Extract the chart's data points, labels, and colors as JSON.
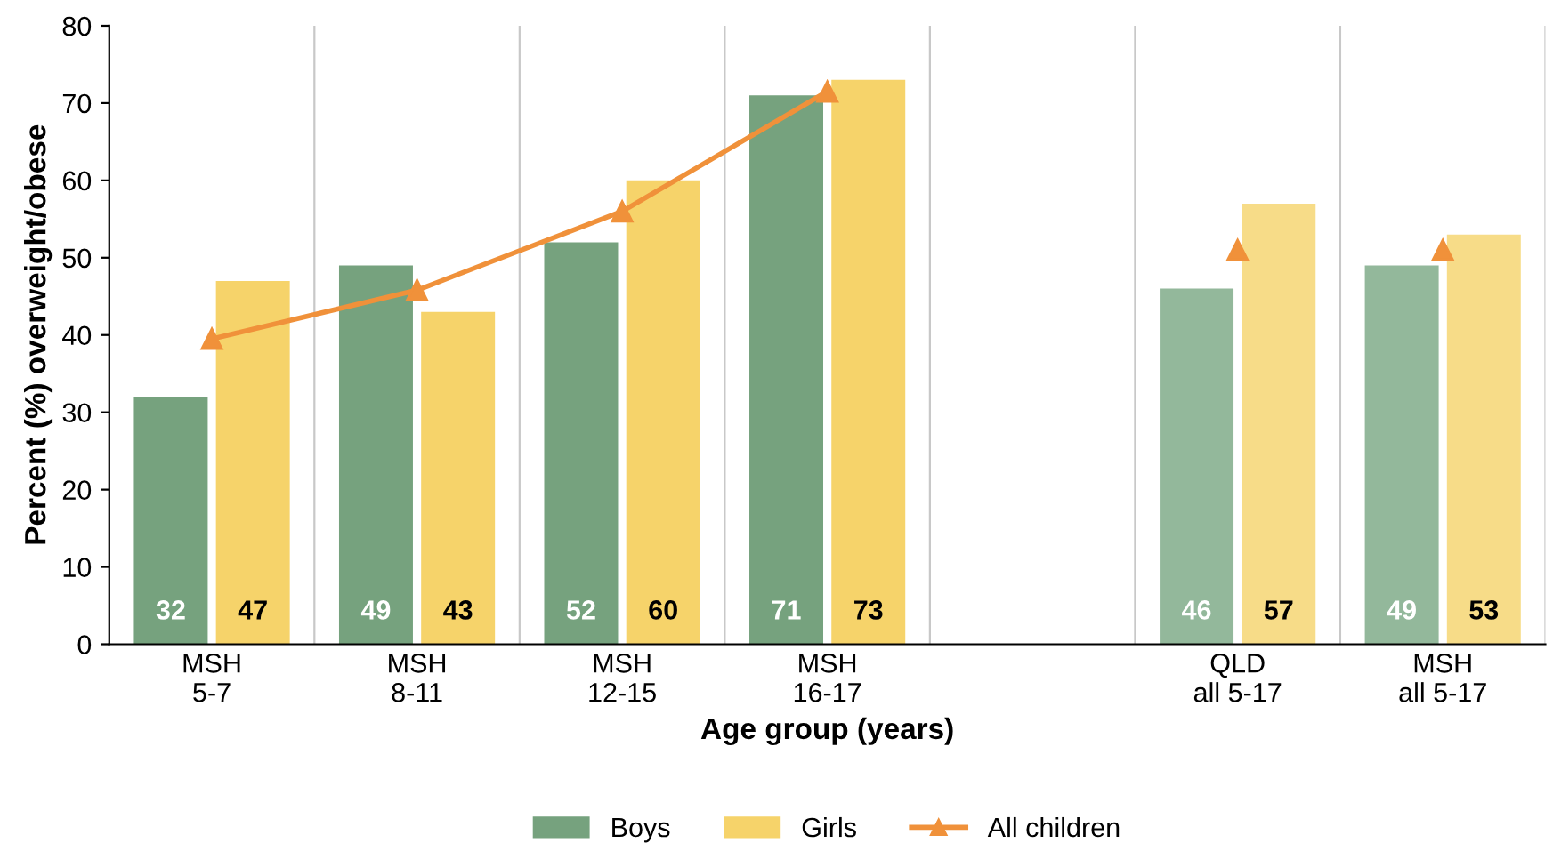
{
  "chart_data": {
    "type": "bar",
    "xlabel": "Age group (years)",
    "ylabel": "Percent (%) overweight/obese",
    "categories": [
      "MSH\n5-7",
      "MSH\n8-11",
      "MSH\n12-15",
      "MSH\n16-17",
      null,
      "QLD\nall 5-17",
      "MSH\nall 5-17"
    ],
    "series": [
      {
        "name": "Boys",
        "color": "#76a27e",
        "colors": [
          "#76a27e",
          "#76a27e",
          "#76a27e",
          "#76a27e",
          "#76a27e",
          "#93b89b",
          "#93b89b"
        ],
        "values": [
          32,
          49,
          52,
          71,
          null,
          46,
          49
        ],
        "value_labels": [
          "32",
          "49",
          "52",
          "71",
          null,
          "46",
          "49"
        ]
      },
      {
        "name": "Girls",
        "color": "#f6d36a",
        "colors": [
          "#f6d36a",
          "#f6d36a",
          "#f6d36a",
          "#f6d36a",
          "#f6d36a",
          "#f7dc88",
          "#f7dc88"
        ],
        "values": [
          47,
          43,
          60,
          73,
          null,
          57,
          53
        ],
        "value_labels": [
          "47",
          "43",
          "60",
          "73",
          null,
          "57",
          "53"
        ]
      },
      {
        "name": "All children",
        "type": "line",
        "color": "#f0913a",
        "marker": "triangle",
        "values": [
          39.5,
          45.8,
          56,
          71.5,
          null,
          null,
          null
        ]
      },
      {
        "type": "scatter",
        "color": "#f0913a",
        "marker": "triangle",
        "values": [
          null,
          null,
          null,
          null,
          null,
          51,
          51
        ]
      }
    ],
    "ylim": [
      0,
      80
    ],
    "yticks": [
      0,
      10,
      20,
      30,
      40,
      50,
      60,
      70,
      80
    ],
    "grid": "x",
    "legend": "bottom"
  }
}
